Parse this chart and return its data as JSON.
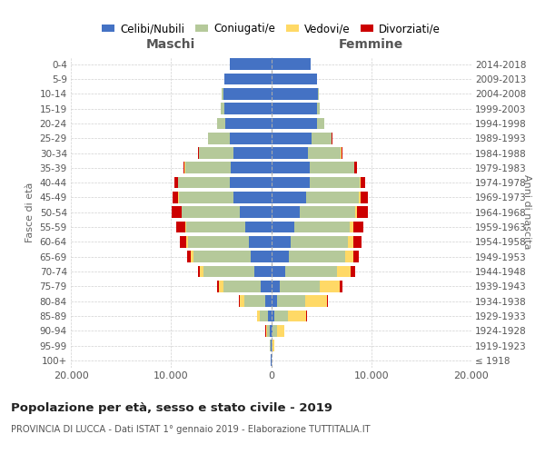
{
  "age_groups": [
    "100+",
    "95-99",
    "90-94",
    "85-89",
    "80-84",
    "75-79",
    "70-74",
    "65-69",
    "60-64",
    "55-59",
    "50-54",
    "45-49",
    "40-44",
    "35-39",
    "30-34",
    "25-29",
    "20-24",
    "15-19",
    "10-14",
    "5-9",
    "0-4"
  ],
  "birth_years": [
    "≤ 1918",
    "1919-1923",
    "1924-1928",
    "1929-1933",
    "1934-1938",
    "1939-1943",
    "1944-1948",
    "1949-1953",
    "1954-1958",
    "1959-1963",
    "1964-1968",
    "1969-1973",
    "1974-1978",
    "1979-1983",
    "1984-1988",
    "1989-1993",
    "1994-1998",
    "1999-2003",
    "2004-2008",
    "2009-2013",
    "2014-2018"
  ],
  "males": {
    "celibi": [
      20,
      55,
      120,
      280,
      580,
      1050,
      1650,
      2050,
      2250,
      2550,
      3150,
      3750,
      4150,
      4050,
      3750,
      4150,
      4550,
      4650,
      4750,
      4650,
      4150
    ],
    "coniugati": [
      8,
      70,
      280,
      850,
      2100,
      3700,
      5100,
      5750,
      6050,
      5950,
      5750,
      5450,
      5150,
      4550,
      3450,
      2150,
      850,
      380,
      180,
      45,
      8
    ],
    "vedovi": [
      4,
      25,
      140,
      280,
      480,
      480,
      330,
      190,
      140,
      95,
      75,
      55,
      35,
      18,
      8,
      4,
      4,
      4,
      0,
      0,
      0
    ],
    "divorziati": [
      4,
      8,
      18,
      35,
      75,
      140,
      240,
      380,
      680,
      880,
      930,
      630,
      330,
      180,
      90,
      25,
      8,
      4,
      0,
      0,
      0
    ]
  },
  "females": {
    "nubili": [
      18,
      65,
      140,
      330,
      580,
      880,
      1380,
      1780,
      1980,
      2280,
      2880,
      3480,
      3880,
      3880,
      3680,
      4080,
      4580,
      4580,
      4680,
      4580,
      3980
    ],
    "coniugate": [
      8,
      90,
      480,
      1380,
      2780,
      3980,
      5180,
      5580,
      5680,
      5580,
      5480,
      5280,
      4980,
      4380,
      3280,
      1980,
      730,
      280,
      90,
      25,
      8
    ],
    "vedove": [
      28,
      190,
      680,
      1780,
      2180,
      1980,
      1380,
      880,
      580,
      330,
      180,
      130,
      90,
      50,
      25,
      12,
      8,
      4,
      4,
      0,
      0
    ],
    "divorziate": [
      4,
      8,
      18,
      55,
      140,
      280,
      430,
      530,
      780,
      980,
      1080,
      730,
      430,
      230,
      90,
      25,
      12,
      4,
      0,
      0,
      0
    ]
  },
  "colors": {
    "celibi": "#4472C4",
    "coniugati": "#b5c99a",
    "vedovi": "#FFD966",
    "divorziati": "#CC0000"
  },
  "title": "Popolazione per età, sesso e stato civile - 2019",
  "subtitle": "PROVINCIA DI LUCCA - Dati ISTAT 1° gennaio 2019 - Elaborazione TUTTITALIA.IT",
  "xlabel_left": "Maschi",
  "xlabel_right": "Femmine",
  "ylabel_left": "Fasce di età",
  "ylabel_right": "Anni di nascita",
  "xlim": 20000,
  "xticks": [
    -20000,
    -10000,
    0,
    10000,
    20000
  ],
  "xticklabels": [
    "20.000",
    "10.000",
    "0",
    "10.000",
    "20.000"
  ],
  "legend_labels": [
    "Celibi/Nubili",
    "Coniugati/e",
    "Vedovi/e",
    "Divorziati/e"
  ]
}
